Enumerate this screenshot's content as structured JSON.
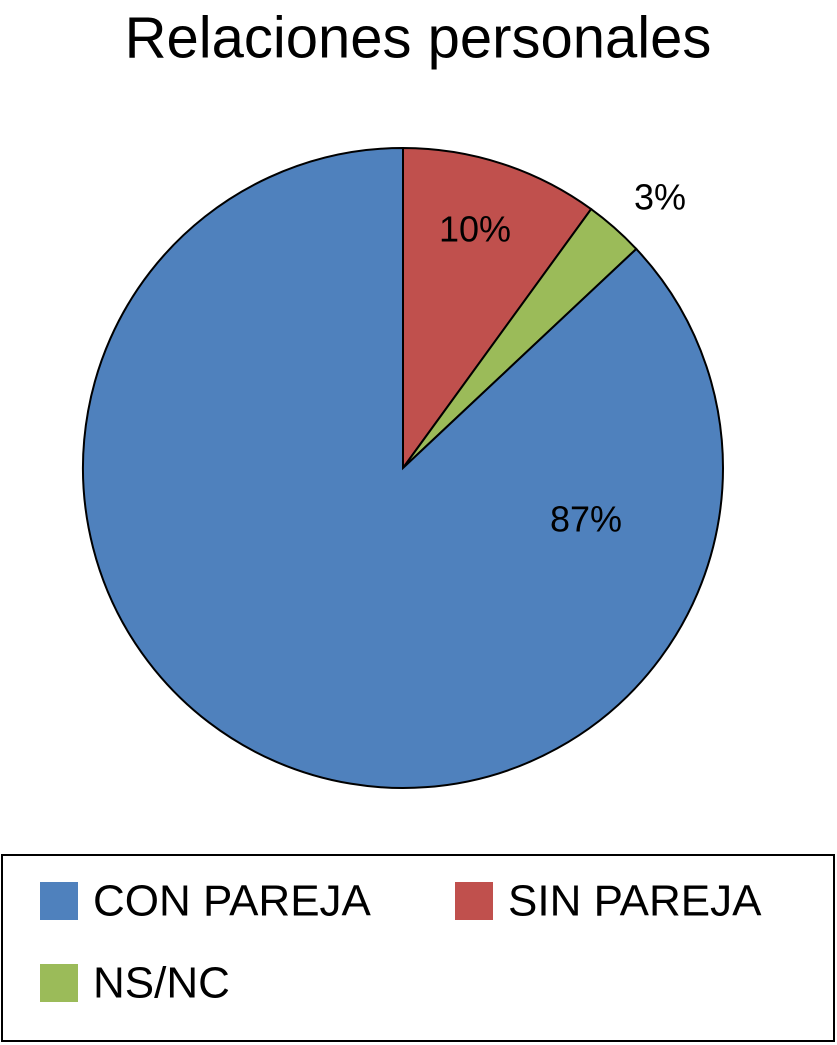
{
  "chart_data": {
    "type": "pie",
    "title": "Relaciones personales",
    "categories": [
      "CON PAREJA",
      "SIN PAREJA",
      "NS/NC"
    ],
    "values": [
      87,
      10,
      3
    ],
    "value_labels": [
      "87%",
      "10%",
      "3%"
    ],
    "colors": [
      "#4f81bd",
      "#c0504d",
      "#9bbb59"
    ]
  }
}
